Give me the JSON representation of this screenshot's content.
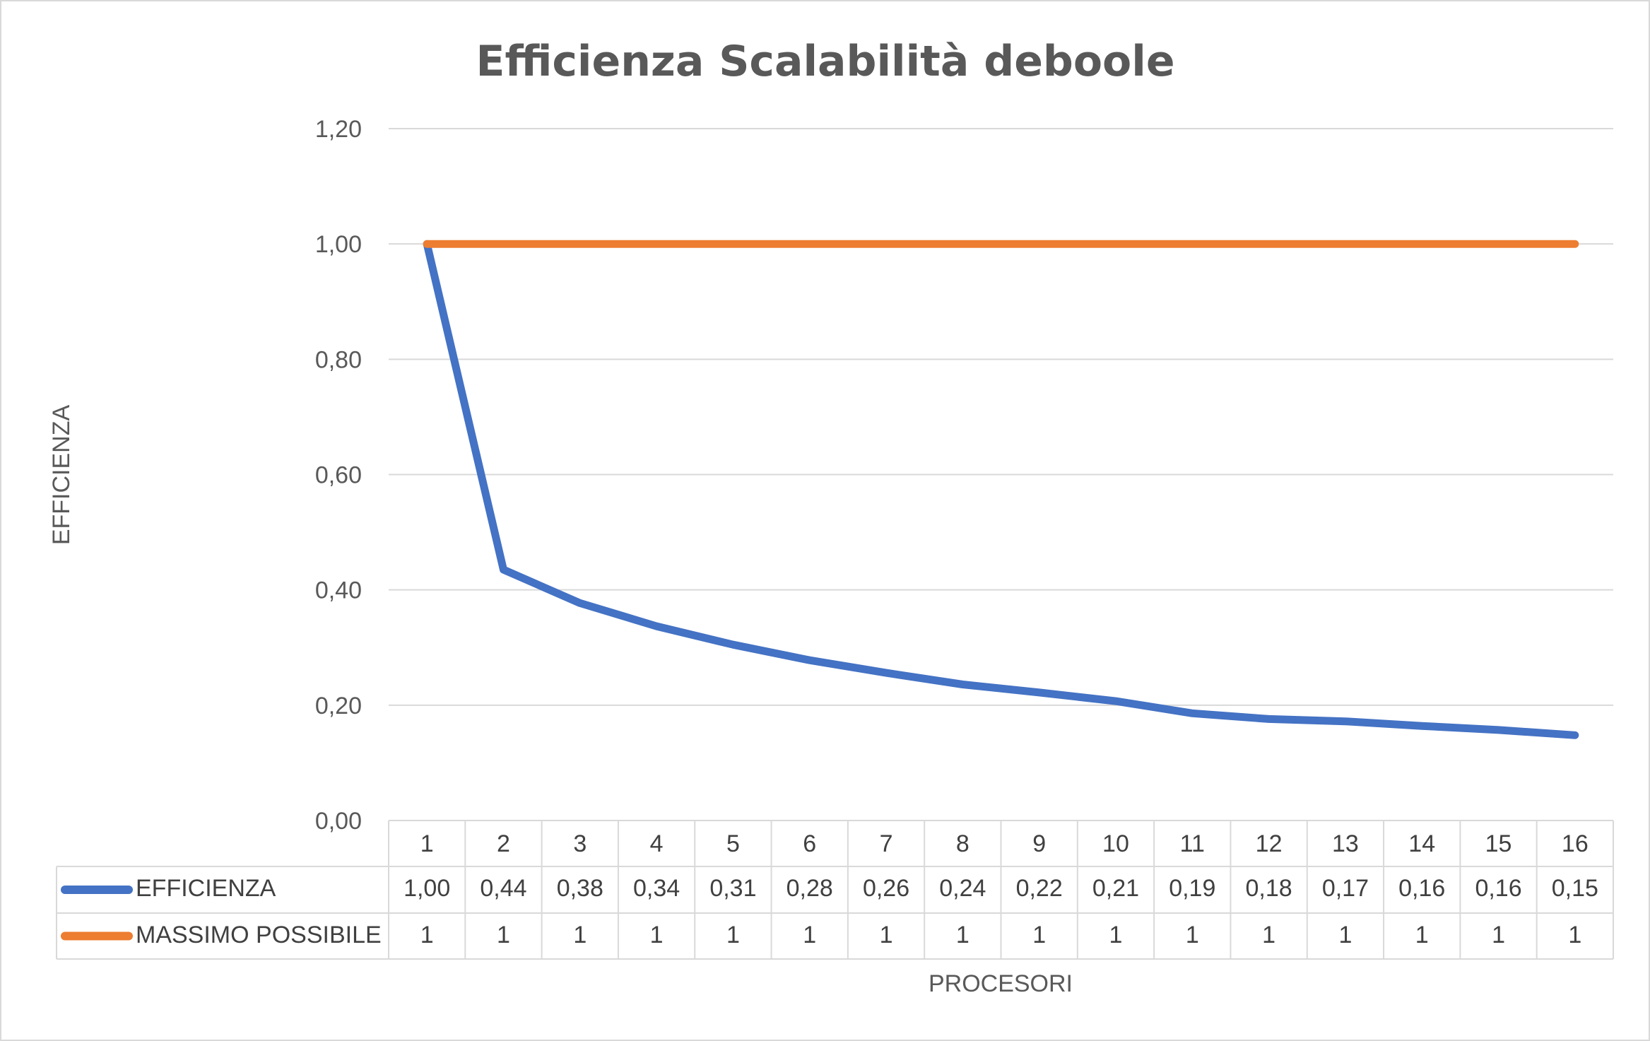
{
  "chart_data": {
    "type": "line",
    "title": "Efficienza Scalabilità deboole",
    "xlabel": "PROCESORI",
    "ylabel": "EFFICIENZA",
    "ylim": [
      0,
      1.2
    ],
    "yticks": [
      "0,00",
      "0,20",
      "0,40",
      "0,60",
      "0,80",
      "1,00",
      "1,20"
    ],
    "grid": true,
    "legend": "data-table",
    "categories": [
      "1",
      "2",
      "3",
      "4",
      "5",
      "6",
      "7",
      "8",
      "9",
      "10",
      "11",
      "12",
      "13",
      "14",
      "15",
      "16"
    ],
    "series": [
      {
        "name": "EFFICIENZA",
        "color": "#4472C4",
        "values": [
          1.0,
          0.435,
          0.377,
          0.337,
          0.305,
          0.278,
          0.256,
          0.236,
          0.222,
          0.207,
          0.186,
          0.176,
          0.172,
          0.164,
          0.157,
          0.148
        ],
        "labels": [
          "1,00",
          "0,44",
          "0,38",
          "0,34",
          "0,31",
          "0,28",
          "0,26",
          "0,24",
          "0,22",
          "0,21",
          "0,19",
          "0,18",
          "0,17",
          "0,16",
          "0,16",
          "0,15"
        ]
      },
      {
        "name": "MASSIMO POSSIBILE",
        "color": "#ED7D31",
        "values": [
          1,
          1,
          1,
          1,
          1,
          1,
          1,
          1,
          1,
          1,
          1,
          1,
          1,
          1,
          1,
          1
        ],
        "labels": [
          "1",
          "1",
          "1",
          "1",
          "1",
          "1",
          "1",
          "1",
          "1",
          "1",
          "1",
          "1",
          "1",
          "1",
          "1",
          "1"
        ]
      }
    ]
  }
}
